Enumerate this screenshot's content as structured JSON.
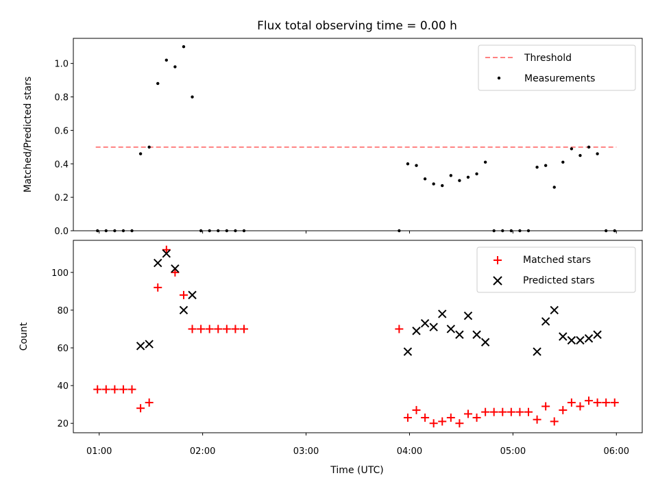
{
  "title": "Flux total observing time = 0.00 h",
  "xlabel": "Time (UTC)",
  "xticks": [
    "01:00",
    "02:00",
    "03:00",
    "04:00",
    "05:00",
    "06:00"
  ],
  "colors": {
    "threshold": "#ff8080",
    "measurements": "#000000",
    "matched": "#ff0000",
    "predicted": "#000000"
  },
  "chart_data": [
    {
      "type": "scatter",
      "ylabel": "Matched/Predicted stars",
      "xlim": [
        "00:45",
        "06:15"
      ],
      "ylim": [
        0,
        1.15
      ],
      "yticks": [
        "0.0",
        "0.2",
        "0.4",
        "0.6",
        "0.8",
        "1.0"
      ],
      "legend": "top-right",
      "threshold": {
        "name": "Threshold",
        "value": 0.5,
        "x": [
          "00:58",
          "06:00"
        ]
      },
      "series": [
        {
          "name": "Measurements",
          "x": [
            "00:59",
            "01:04",
            "01:09",
            "01:14",
            "01:19",
            "01:24",
            "01:29",
            "01:34",
            "01:39",
            "01:44",
            "01:49",
            "01:54",
            "01:59",
            "02:04",
            "02:09",
            "02:14",
            "02:19",
            "02:24",
            "03:54",
            "03:59",
            "04:04",
            "04:09",
            "04:14",
            "04:19",
            "04:24",
            "04:29",
            "04:34",
            "04:39",
            "04:44",
            "04:49",
            "04:54",
            "04:59",
            "05:04",
            "05:09",
            "05:14",
            "05:19",
            "05:24",
            "05:29",
            "05:34",
            "05:39",
            "05:44",
            "05:49",
            "05:54",
            "05:59"
          ],
          "y": [
            0,
            0,
            0,
            0,
            0,
            0.46,
            0.5,
            0.88,
            1.02,
            0.98,
            1.1,
            0.8,
            0,
            0,
            0,
            0,
            0,
            0,
            0,
            0.4,
            0.39,
            0.31,
            0.28,
            0.27,
            0.33,
            0.3,
            0.32,
            0.34,
            0.41,
            0,
            0,
            0,
            0,
            0,
            0.38,
            0.39,
            0.26,
            0.41,
            0.49,
            0.45,
            0.5,
            0.46,
            0,
            0
          ]
        }
      ]
    },
    {
      "type": "scatter",
      "ylabel": "Count",
      "xlim": [
        "00:45",
        "06:15"
      ],
      "ylim": [
        15,
        117
      ],
      "yticks": [
        "20",
        "40",
        "60",
        "80",
        "100"
      ],
      "legend": "top-right",
      "series": [
        {
          "name": "Matched stars",
          "marker": "+",
          "x": [
            "00:59",
            "01:04",
            "01:09",
            "01:14",
            "01:19",
            "01:24",
            "01:29",
            "01:34",
            "01:39",
            "01:44",
            "01:49",
            "01:54",
            "01:59",
            "02:04",
            "02:09",
            "02:14",
            "02:19",
            "02:24",
            "03:54",
            "03:59",
            "04:04",
            "04:09",
            "04:14",
            "04:19",
            "04:24",
            "04:29",
            "04:34",
            "04:39",
            "04:44",
            "04:49",
            "04:54",
            "04:59",
            "05:04",
            "05:09",
            "05:14",
            "05:19",
            "05:24",
            "05:29",
            "05:34",
            "05:39",
            "05:44",
            "05:49",
            "05:54",
            "05:59"
          ],
          "y": [
            38,
            38,
            38,
            38,
            38,
            28,
            31,
            92,
            112,
            100,
            88,
            70,
            70,
            70,
            70,
            70,
            70,
            70,
            70,
            23,
            27,
            23,
            20,
            21,
            23,
            20,
            25,
            23,
            26,
            26,
            26,
            26,
            26,
            26,
            22,
            29,
            21,
            27,
            31,
            29,
            32,
            31,
            31,
            31
          ]
        },
        {
          "name": "Predicted stars",
          "marker": "x",
          "x": [
            "01:24",
            "01:29",
            "01:34",
            "01:39",
            "01:44",
            "01:49",
            "01:54",
            "03:59",
            "04:04",
            "04:09",
            "04:14",
            "04:19",
            "04:24",
            "04:29",
            "04:34",
            "04:39",
            "04:44",
            "05:14",
            "05:19",
            "05:24",
            "05:29",
            "05:34",
            "05:39",
            "05:44",
            "05:49"
          ],
          "y": [
            61,
            62,
            105,
            110,
            102,
            80,
            88,
            58,
            69,
            73,
            71,
            78,
            70,
            67,
            77,
            67,
            63,
            58,
            74,
            80,
            66,
            64,
            64,
            65,
            67
          ]
        }
      ]
    }
  ]
}
